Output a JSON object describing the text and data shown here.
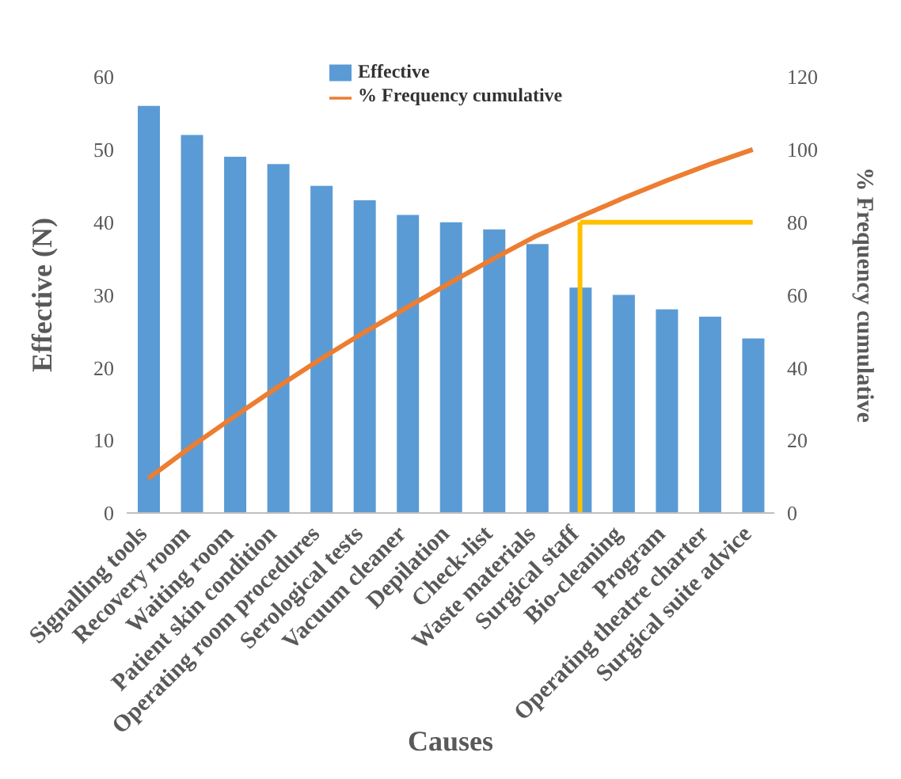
{
  "chart_data": {
    "type": "bar",
    "xlabel": "Causes",
    "ylabel": "Effective (N)",
    "y2label": "% Frequency cumulative",
    "categories": [
      "Signalling tools",
      "Recovery room",
      "Waiting room",
      "Patient skin condition",
      "Operating room procedures",
      "Serological tests",
      "Vacuum cleaner",
      "Depilation",
      "Check-list",
      "Waste materials",
      "Surgical staff",
      "Bio-cleaning",
      "Program",
      "Operating theatre charter",
      "Surgical suite advice"
    ],
    "series": [
      {
        "name": "Effective",
        "color": "#5b9bd5",
        "values": [
          56,
          52,
          49,
          48,
          45,
          43,
          41,
          40,
          39,
          37,
          31,
          30,
          28,
          27,
          24
        ]
      },
      {
        "name": "% Frequency cumulative",
        "type": "line",
        "axis": "y2",
        "color": "#ed7d31",
        "values": [
          9.5,
          18.3,
          26.6,
          34.7,
          42.4,
          49.7,
          56.6,
          63.4,
          70.0,
          76.3,
          81.5,
          86.6,
          91.4,
          95.9,
          100
        ]
      }
    ],
    "ylim": [
      0,
      60
    ],
    "yticks": [
      0,
      10,
      20,
      30,
      40,
      50,
      60
    ],
    "y2lim": [
      0,
      120
    ],
    "y2ticks": [
      0,
      20,
      40,
      60,
      80,
      100,
      120
    ],
    "ref_lines": [
      {
        "axis": "y2",
        "value": 80,
        "color": "#ffc000"
      },
      {
        "axis": "x",
        "value": "Surgical staff",
        "color": "#ffc000"
      }
    ],
    "legend": "top",
    "marker": "none",
    "line_style": "solid"
  }
}
